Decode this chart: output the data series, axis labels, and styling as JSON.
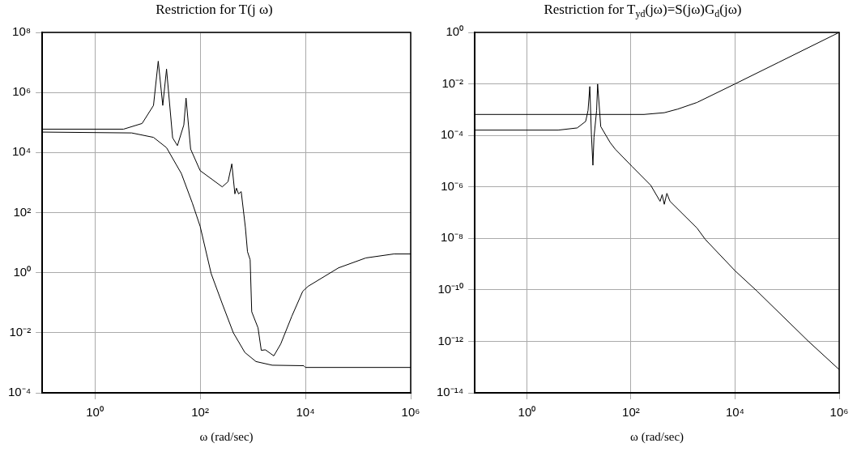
{
  "chart_data": [
    {
      "type": "line",
      "title": "Restriction for T(j ω)",
      "xlabel": "ω (rad/sec)",
      "log": "xy",
      "grid": true,
      "xlim": [
        0.1,
        1000000
      ],
      "ylim": [
        0.0001,
        100000000
      ],
      "xticks": [
        {
          "value": 1,
          "label": "10⁰"
        },
        {
          "value": 100,
          "label": "10²"
        },
        {
          "value": 10000,
          "label": "10⁴"
        },
        {
          "value": 1000000,
          "label": "10⁶"
        }
      ],
      "yticks": [
        {
          "value": 0.0001,
          "label": "10⁻⁴"
        },
        {
          "value": 0.01,
          "label": "10⁻²"
        },
        {
          "value": 1,
          "label": "10⁰"
        },
        {
          "value": 100,
          "label": "10²"
        },
        {
          "value": 10000,
          "label": "10⁴"
        },
        {
          "value": 1000000,
          "label": "10⁶"
        },
        {
          "value": 100000000,
          "label": "10⁸"
        }
      ],
      "series": [
        {
          "color": "#000000",
          "x": [
            0.1,
            3.5,
            7.9,
            13,
            16,
            19.5,
            23,
            30,
            37,
            49,
            54,
            66,
            100,
            263,
            339,
            400,
            457,
            490,
            537,
            603,
            724,
            794,
            891,
            955,
            1260,
            1450,
            1740,
            2510,
            3390,
            5500,
            8900,
            11200,
            42700,
            141000,
            479000,
            1000000
          ],
          "values": [
            60000,
            60000,
            93000,
            370000,
            11000000,
            370000,
            6000000,
            31000,
            17000,
            83000,
            650000,
            13000,
            2500,
            720,
            1070,
            4200,
            420,
            650,
            420,
            500,
            32,
            5,
            2.7,
            0.05,
            0.0145,
            0.0026,
            0.0027,
            0.0017,
            0.0042,
            0.035,
            0.24,
            0.35,
            1.45,
            3.1,
            4.2,
            4.2
          ]
        },
        {
          "color": "#000000",
          "x": [
            0.1,
            5,
            13,
            23,
            44,
            71,
            100,
            162,
            263,
            427,
            708,
            1150,
            2340,
            9300,
            10000,
            1000000
          ],
          "values": [
            48000,
            45000,
            32000,
            14500,
            2000,
            210,
            35,
            0.93,
            0.093,
            0.01,
            0.0022,
            0.0011,
            0.00083,
            0.0008,
            0.0007,
            0.0007
          ]
        }
      ]
    },
    {
      "type": "line",
      "title": "Restriction for  T$_{yd}$(jω)=S(jω)G$_{d}$(jω)",
      "xlabel": "ω (rad/sec)",
      "log": "xy",
      "grid": true,
      "xlim": [
        0.1,
        1000000
      ],
      "ylim": [
        1e-14,
        1
      ],
      "xticks": [
        {
          "value": 1,
          "label": "10⁰"
        },
        {
          "value": 100,
          "label": "10²"
        },
        {
          "value": 10000,
          "label": "10⁴"
        },
        {
          "value": 1000000,
          "label": "10⁶"
        }
      ],
      "yticks": [
        {
          "value": 1e-14,
          "label": "10⁻¹⁴"
        },
        {
          "value": 1e-12,
          "label": "10⁻¹²"
        },
        {
          "value": 1e-10,
          "label": "10⁻¹⁰"
        },
        {
          "value": 1e-08,
          "label": "10⁻⁸"
        },
        {
          "value": 1e-06,
          "label": "10⁻⁶"
        },
        {
          "value": 0.0001,
          "label": "10⁻⁴"
        },
        {
          "value": 0.01,
          "label": "10⁻²"
        },
        {
          "value": 1,
          "label": "10⁰"
        }
      ],
      "series": [
        {
          "color": "#000000",
          "x": [
            0.1,
            178,
            437,
            794,
            1860,
            10000,
            69000,
            1000000
          ],
          "values": [
            0.00065,
            0.00065,
            0.00076,
            0.00105,
            0.0019,
            0.01,
            0.069,
            1
          ]
        },
        {
          "color": "#000000",
          "x": [
            0.1,
            4,
            9.3,
            13.5,
            15,
            16.2,
            17.4,
            18.6,
            19.5,
            21.9,
            22.9,
            26.3,
            40,
            50,
            105,
            240,
            363,
            398,
            437,
            490,
            562,
            1860,
            2690,
            10000,
            26300,
            257000,
            1000000
          ],
          "values": [
            0.00016,
            0.00016,
            0.000195,
            0.00035,
            0.00093,
            0.0079,
            0.000107,
            6.9e-06,
            8.5e-05,
            0.00093,
            0.0098,
            0.00022,
            5.2e-05,
            2.9e-05,
            6.2e-06,
            1.15e-06,
            2.75e-07,
            5e-07,
            2.1e-07,
            5.6e-07,
            2.75e-07,
            2.5e-08,
            9e-09,
            5.5e-10,
            9e-11,
            1e-12,
            8e-14
          ]
        }
      ]
    }
  ]
}
